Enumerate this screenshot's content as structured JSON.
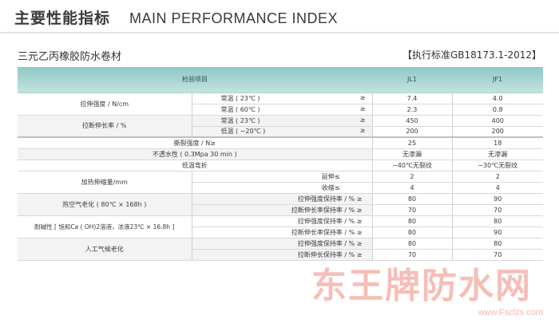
{
  "header": {
    "title_cn": "主要性能指标",
    "title_en": "MAIN PERFORMANCE INDEX"
  },
  "product": {
    "name": "三元乙丙橡胶防水卷材",
    "standard": "【执行标准GB18173.1-2012】"
  },
  "table": {
    "col_item": "检验项目",
    "col_jl1": "JL1",
    "col_jf1": "JF1",
    "r1_label": "拉伸强度 / N/cm",
    "r1a_cond": "常温 ( 23℃ )",
    "r1a_sym": "≥",
    "r1a_jl1": "7.4",
    "r1a_jf1": "4.0",
    "r1b_cond": "常温 ( 60℃ )",
    "r1b_sym": "≥",
    "r1b_jl1": "2.3",
    "r1b_jf1": "0.8",
    "r2_label": "拉断伸长率 / %",
    "r2a_cond": "常温 ( 23℃ )",
    "r2a_sym": "≥",
    "r2a_jl1": "450",
    "r2a_jf1": "400",
    "r2b_cond": "低温 ( −20℃ )",
    "r2b_sym": "≥",
    "r2b_jl1": "200",
    "r2b_jf1": "200",
    "r3_label": "撕裂强度 / N≥",
    "r3_jl1": "25",
    "r3_jf1": "18",
    "r4_label": "不透水性 ( 0.3Mpa 30 min )",
    "r4_jl1": "无渗漏",
    "r4_jf1": "无渗漏",
    "r5_label": "低温弯折",
    "r5_jl1": "−40℃无裂纹",
    "r5_jf1": "−30℃无裂纹",
    "r6_label": "加热伸缩量/mm",
    "r6a_cond": "延伸≤",
    "r6a_jl1": "2",
    "r6a_jf1": "2",
    "r6b_cond": "收缩≤",
    "r6b_jl1": "4",
    "r6b_jf1": "4",
    "r7_label": "热空气老化 ( 80℃ × 168h )",
    "r7a_cond": "拉伸强度保持率 / % ≥",
    "r7a_jl1": "80",
    "r7a_jf1": "90",
    "r7b_cond": "拉断伸长率保持率 / % ≥",
    "r7b_jl1": "70",
    "r7b_jf1": "70",
    "r8_label": "耐碱性 [ 饱和Ca ( OH)2溶液，浓液23℃ × 16.8h ]",
    "r8a_cond": "拉伸强度保持率 / % ≥",
    "r8a_jl1": "80",
    "r8a_jf1": "80",
    "r8b_cond": "拉断伸长率保持率 / % ≥",
    "r8b_jl1": "80",
    "r8b_jf1": "90",
    "r9_label": "人工气候老化",
    "r9a_cond": "拉伸强度保持率 / % ≥",
    "r9a_jl1": "80",
    "r9a_jf1": "80",
    "r9b_cond": "拉断伸长保持率 / % ≥",
    "r9b_jl1": "70",
    "r9b_jf1": "70"
  },
  "watermark": {
    "text": "东王牌防水网",
    "url": "www.Fsclzs.com"
  }
}
